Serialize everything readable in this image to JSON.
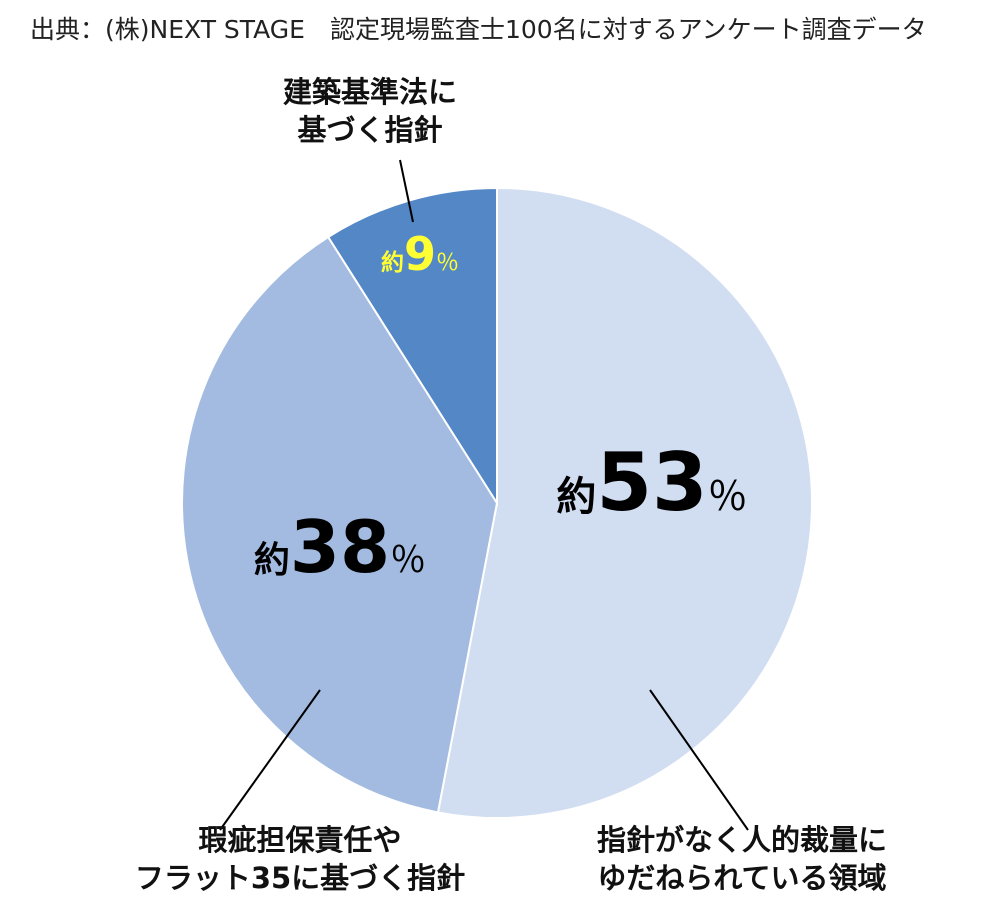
{
  "source": "出典：(株)NEXT STAGE　認定現場監査士100名に対するアンケート調査データ",
  "chart_data": {
    "type": "pie",
    "slices": [
      {
        "label_lines": [
          "指針がなく人的裁量に",
          "ゆだねられている領域"
        ],
        "prefix": "約",
        "value": 53,
        "unit": "％",
        "color": "#d1ddf1",
        "value_color": "#000000"
      },
      {
        "label_lines": [
          "瑕疵担保責任や",
          "フラット35に基づく指針"
        ],
        "prefix": "約",
        "value": 38,
        "unit": "％",
        "color": "#a3bbe0",
        "value_color": "#000000"
      },
      {
        "label_lines": [
          "建築基準法に",
          "基づく指針"
        ],
        "prefix": "約",
        "value": 9,
        "unit": "％",
        "color": "#5487c6",
        "value_color": "#ffff33"
      }
    ]
  }
}
